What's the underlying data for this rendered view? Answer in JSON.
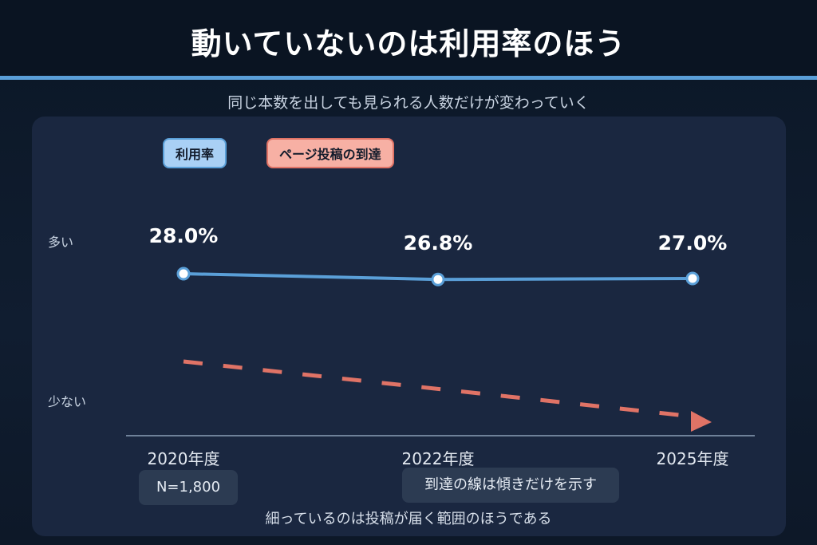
{
  "title": "動いていないのは利用率のほう",
  "subtitle": "同じ本数を出しても見られる人数だけが変わっていく",
  "chart_data": {
    "type": "line",
    "categories": [
      "2020年度",
      "2022年度",
      "2025年度"
    ],
    "series": [
      {
        "name": "利用率",
        "values": [
          28.0,
          26.8,
          27.0
        ],
        "labels": [
          "28.0%",
          "26.8%",
          "27.0%"
        ],
        "color": "#5a9fd8"
      },
      {
        "name": "ページ投稿の到達",
        "trend": "decreasing",
        "color": "#e07366"
      }
    ],
    "y_axis_words": {
      "high": "多い",
      "low": "少ない"
    },
    "legend_placement": "top-left",
    "grid": false
  },
  "annotations": {
    "sample_size": "N=1,800",
    "slope_note": "到達の線は傾きだけを示す",
    "footer": "細っているのは投稿が届く範囲のほうである"
  }
}
